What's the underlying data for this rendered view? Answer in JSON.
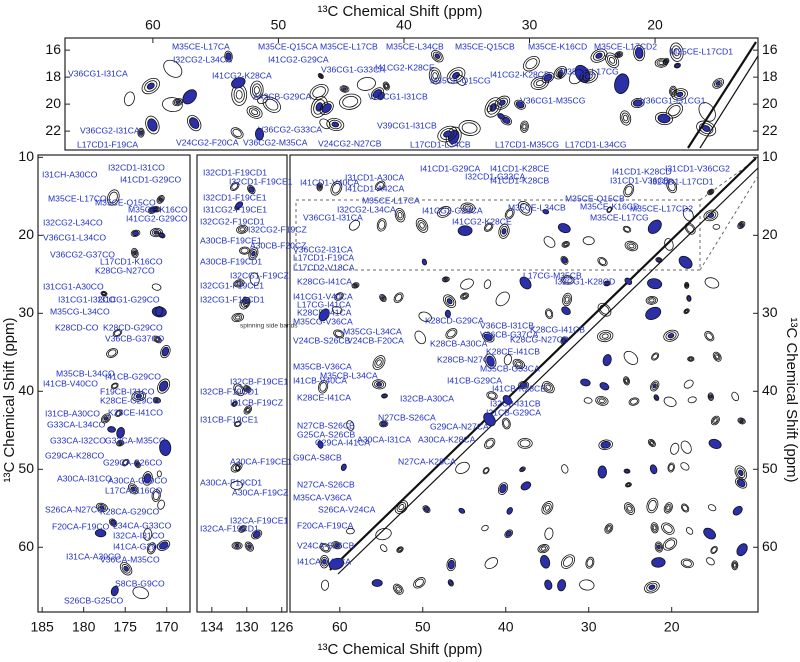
{
  "chart_data": [
    {
      "type": "contour",
      "xlabel": "¹³C Chemical Shift (ppm)",
      "xlim": [
        67,
        11.8
      ],
      "xticks": [
        60,
        50,
        40,
        30,
        20
      ],
      "ylim": [
        15.1,
        23.4
      ],
      "yticks": [
        16,
        18,
        20,
        22
      ],
      "annotations": [
        "M35CE-L17CA",
        "M35CE-Q15CA",
        "M35CE-L17CB",
        "M35CE-L34CB",
        "M35CE-Q15CB",
        "M35CE-K16CD",
        "M35CE-L17CD2",
        "M35CE-L17CD1",
        "I32CG2-L34CA",
        "I41CG2-G29CA",
        "V36CG1-I31CA",
        "I41CG2-K28CA",
        "V36CG1-G33CA",
        "I41CG2-K28CE",
        "M35CE-Q15CG",
        "I41CG2-K28CD",
        "M35CE-L17CG",
        "A42CB-G29CA",
        "V36CG1-I31CB",
        "V36CG1-M35CG",
        "V36CG1-I31CG1",
        "V36CG2-I31CA",
        "V36CG2-G33CA",
        "V39CG1-I31CB",
        "L17CD1-F19CA",
        "V24CG2-F20CA",
        "V36CG2-M35CA",
        "V24CG2-N27CB",
        "L17CD1-L34CB",
        "L17CD1-M35CG",
        "L17CD1-L34CG"
      ]
    },
    {
      "type": "contour",
      "xlim": [
        185.5,
        167.2
      ],
      "xticks": [
        185,
        180,
        175,
        170
      ],
      "ylim": [
        9.7,
        68.3
      ],
      "annotations": [
        "I31CH-A30CO",
        "I32CD1-I31CO",
        "I41CD1-G29CO",
        "M35CE-L17CO",
        "M35CE-Q15CO",
        "M35CE-K16CO",
        "I41CG2-G29CO",
        "I32CG2-L34CO",
        "V36CG1-L34CO",
        "V36CG2-G37CO",
        "L17CD1-K16CO",
        "K28CG-N27CO",
        "I31CG1-A30CO",
        "I31CG1-I32CO",
        "I31CG1-G29CO",
        "M35CG-L34CO",
        "K28CD-CO",
        "K28CD-G29CO",
        "V36CB-G37CO",
        "M35CB-L34CO",
        "I41CB-G29CO",
        "I41CB-V40CO",
        "F19CB-I31CO",
        "K28CE-G29CO",
        "I31CB-A30CO",
        "K28CE-I41CO",
        "G33CA-L34CO",
        "G33CA-I32CO",
        "G33CA-M35CO",
        "G29CA-K28CO",
        "G29CA-S26CO",
        "A30CA-I31CO",
        "A30CA-G29CO",
        "L17CA-K16CO",
        "S26CA-N27CO",
        "K28CA-G29CO",
        "F20CA-F19CO",
        "L34CA-G33CO",
        "I32CA-I31CO",
        "I41CA-G29CO",
        "I31CA-A30CO",
        "V36CA-M35CO",
        "S8CB-G9CO",
        "S26CB-G25CO"
      ]
    },
    {
      "type": "contour",
      "xlim": [
        135.7,
        125.4
      ],
      "xticks": [
        134,
        130,
        126
      ],
      "ylim": [
        9.7,
        68.3
      ],
      "annotations": [
        "I32CD1-F19CD1",
        "I32CD1-F19CE1",
        "I32CD1-F19CE1",
        "I31CG2-F19CE1",
        "I32CG2-F19CD1",
        "I32CG2-F19CZ",
        "A30CB-F19CE1",
        "A30CB-F19CD1",
        "A30CB-F20CZ",
        "I32CG1-F19CZ",
        "I32CG1-F19CE1",
        "I32CG1-F19CD1",
        "spinning side bands",
        "I32CB-F19CE1",
        "I32CB-F19CD1",
        "I31CB-F19CZ",
        "I31CB-F19CE1",
        "A30CA-F19CE1",
        "A30CA-F19CD1",
        "A30CA-F19CZ",
        "I32CA-F19CE1",
        "I32CA-F19CD1"
      ]
    },
    {
      "type": "contour",
      "xlabel": "¹³C Chemical Shift (ppm)",
      "ylabel": "¹³C Chemical Shift (ppm)",
      "xlim": [
        66,
        9.6
      ],
      "xticks": [
        60,
        50,
        40,
        30,
        20
      ],
      "ylim": [
        9.7,
        68.3
      ],
      "yticks": [
        10,
        20,
        30,
        40,
        50,
        60
      ],
      "annotations": [
        "I41CD1-V40CA",
        "I31CD1-A30CA",
        "I41CD1-A42CA",
        "I41CD1-G29CA",
        "I32CD1-G33CA",
        "I41CD1-K28CE",
        "I41CD1-K28CB",
        "I31CD1-V36CB",
        "I41CD1-K28CD",
        "I31CD1-V36CG2",
        "I32CD1-L17CD1",
        "I32CG2-L34CA",
        "M35CE-L17CA",
        "I41CG2-G29CA",
        "I41CG2-K28CE",
        "M35CE-L34CB",
        "M35CE-Q15CB",
        "M35CE-K16CD",
        "M35CE-L17CD2",
        "M35CE-L17CG",
        "V36CG1-I31CA",
        "V36CG2-I31CA",
        "L17CD1-F19CA",
        "L17CD2-V18CA",
        "K28CG-I41CA",
        "I41CG1-V40CA",
        "L17CG-I41CA",
        "K28CD-I41CA",
        "M35CG-V36CA",
        "M35CG-L34CA",
        "V24CB-S26CB",
        "V24CB-F20CA",
        "M35CB-V36CA",
        "M35CB-L34CA",
        "I41CB-V40CA",
        "K28CE-I41CA",
        "N27CB-S26CB",
        "G25CA-S26CB",
        "G29CA-I41CA",
        "G9CA-S8CB",
        "N27CA-S26CB",
        "M35CA-V36CA",
        "S26CA-V24CA",
        "F20CA-F19CA",
        "V24CA-S26CB",
        "I41CA-V40CA",
        "K28CD-G29CA",
        "K28CB-A30CA",
        "K28CB-N27CA",
        "M35CB-G33CA",
        "I41CB-G29CA",
        "I41CB-K28CE",
        "I32CB-A30CA",
        "N27CB-S26CA",
        "G29CA-N27CA",
        "A30CA-I31CA",
        "A30CA-K28CA",
        "N27CA-K28CA",
        "V36CB-I31CB",
        "V36CB-G37CA",
        "K28CE-I41CB",
        "I32CB-I31CB",
        "I31CB-G29CA",
        "L17CG-M35CB",
        "I32CG1-K28CD",
        "K28CG-I41CB",
        "K28CG-N27CB"
      ]
    }
  ]
}
